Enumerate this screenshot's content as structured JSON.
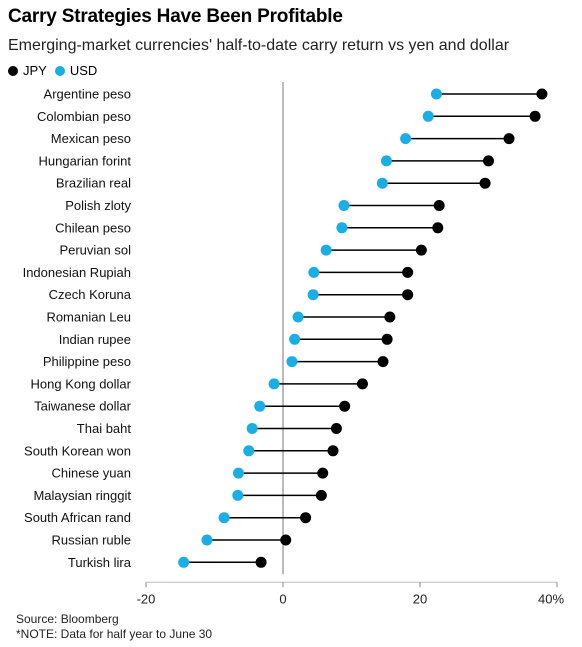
{
  "header": {
    "title": "Carry Strategies Have Been Profitable",
    "subtitle": "Emerging-market currencies' half-to-date carry return vs yen and dollar"
  },
  "legend": [
    {
      "label": "JPY",
      "color": "#000000"
    },
    {
      "label": "USD",
      "color": "#1aaee5"
    }
  ],
  "footer": {
    "source": "Source: Bloomberg",
    "note": "*NOTE: Data for half year to June 30"
  },
  "chart_data": {
    "type": "dumbbell",
    "title": "Carry Strategies Have Been Profitable",
    "xlim": [
      -20,
      40
    ],
    "x_ticks": [
      -20,
      0,
      20,
      40
    ],
    "x_tick_labels": [
      "-20",
      "0",
      "20",
      "40%"
    ],
    "categories": [
      "Argentine peso",
      "Colombian peso",
      "Mexican peso",
      "Hungarian forint",
      "Brazilian real",
      "Polish zloty",
      "Chilean peso",
      "Peruvian sol",
      "Indonesian Rupiah",
      "Czech Koruna",
      "Romanian Leu",
      "Indian rupee",
      "Philippine peso",
      "Hong Kong dollar",
      "Taiwanese dollar",
      "Thai baht",
      "South Korean won",
      "Chinese yuan",
      "Malaysian ringgit",
      "South African rand",
      "Russian ruble",
      "Turkish lira"
    ],
    "series": [
      {
        "name": "JPY",
        "color": "#000000",
        "values": [
          37.8,
          36.8,
          33.0,
          30.0,
          29.5,
          22.8,
          22.6,
          20.2,
          18.2,
          18.2,
          15.6,
          15.2,
          14.6,
          11.6,
          9.0,
          7.8,
          7.3,
          5.8,
          5.6,
          3.3,
          0.4,
          -3.2
        ]
      },
      {
        "name": "USD",
        "color": "#1aaee5",
        "values": [
          22.4,
          21.2,
          17.9,
          15.1,
          14.5,
          8.9,
          8.6,
          6.3,
          4.5,
          4.4,
          2.2,
          1.7,
          1.3,
          -1.3,
          -3.4,
          -4.5,
          -5.0,
          -6.5,
          -6.6,
          -8.6,
          -11.1,
          -14.5
        ]
      }
    ],
    "grid": false
  }
}
